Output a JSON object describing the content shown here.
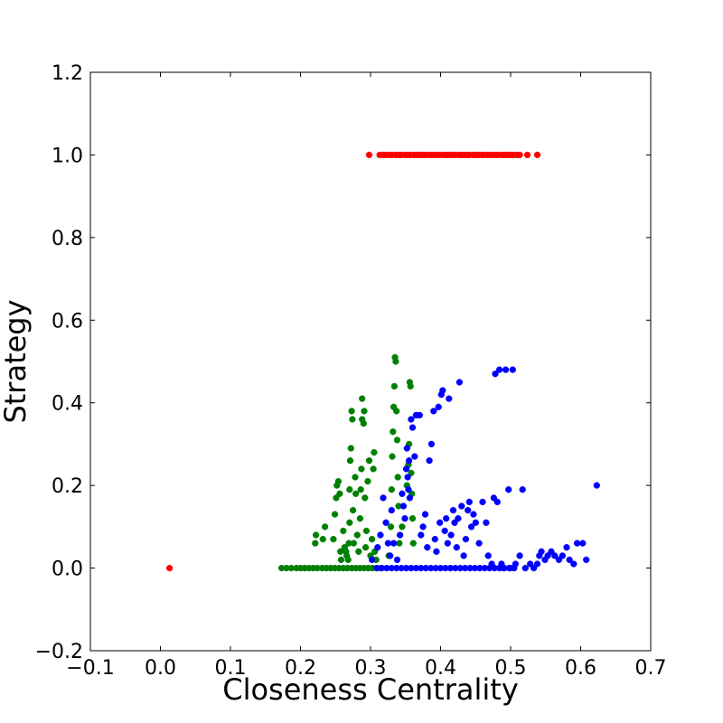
{
  "chart_data": {
    "type": "scatter",
    "title": "",
    "xlabel": "Closeness Centrality",
    "ylabel": "Strategy",
    "xlim": [
      -0.1,
      0.7
    ],
    "ylim": [
      -0.2,
      1.2
    ],
    "xticks": [
      -0.1,
      0.0,
      0.1,
      0.2,
      0.3,
      0.4,
      0.5,
      0.6,
      0.7
    ],
    "xtick_labels": [
      "−0.1",
      "0.0",
      "0.1",
      "0.2",
      "0.3",
      "0.4",
      "0.5",
      "0.6",
      "0.7"
    ],
    "yticks": [
      -0.2,
      0.0,
      0.2,
      0.4,
      0.6,
      0.8,
      1.0,
      1.2
    ],
    "ytick_labels": [
      "−0.2",
      "0.0",
      "0.2",
      "0.4",
      "0.6",
      "0.8",
      "1.0",
      "1.2"
    ],
    "grid": false,
    "series": [
      {
        "color": "#ff0000",
        "points": [
          [
            0.013,
            0.0
          ],
          [
            0.298,
            1.0
          ],
          [
            0.313,
            1.0
          ],
          [
            0.318,
            1.0
          ],
          [
            0.322,
            1.0
          ],
          [
            0.327,
            1.0
          ],
          [
            0.331,
            1.0
          ],
          [
            0.336,
            1.0
          ],
          [
            0.34,
            1.0
          ],
          [
            0.344,
            1.0
          ],
          [
            0.349,
            1.0
          ],
          [
            0.353,
            1.0
          ],
          [
            0.357,
            1.0
          ],
          [
            0.362,
            1.0
          ],
          [
            0.366,
            1.0
          ],
          [
            0.37,
            1.0
          ],
          [
            0.374,
            1.0
          ],
          [
            0.378,
            1.0
          ],
          [
            0.383,
            1.0
          ],
          [
            0.387,
            1.0
          ],
          [
            0.391,
            1.0
          ],
          [
            0.395,
            1.0
          ],
          [
            0.399,
            1.0
          ],
          [
            0.404,
            1.0
          ],
          [
            0.408,
            1.0
          ],
          [
            0.412,
            1.0
          ],
          [
            0.416,
            1.0
          ],
          [
            0.42,
            1.0
          ],
          [
            0.425,
            1.0
          ],
          [
            0.429,
            1.0
          ],
          [
            0.433,
            1.0
          ],
          [
            0.437,
            1.0
          ],
          [
            0.441,
            1.0
          ],
          [
            0.446,
            1.0
          ],
          [
            0.45,
            1.0
          ],
          [
            0.454,
            1.0
          ],
          [
            0.458,
            1.0
          ],
          [
            0.462,
            1.0
          ],
          [
            0.467,
            1.0
          ],
          [
            0.471,
            1.0
          ],
          [
            0.475,
            1.0
          ],
          [
            0.479,
            1.0
          ],
          [
            0.483,
            1.0
          ],
          [
            0.488,
            1.0
          ],
          [
            0.492,
            1.0
          ],
          [
            0.496,
            1.0
          ],
          [
            0.5,
            1.0
          ],
          [
            0.504,
            1.0
          ],
          [
            0.509,
            1.0
          ],
          [
            0.513,
            1.0
          ],
          [
            0.524,
            1.0
          ],
          [
            0.538,
            1.0
          ]
        ]
      },
      {
        "color": "#008000",
        "points": [
          [
            0.173,
            0.0
          ],
          [
            0.18,
            0.0
          ],
          [
            0.187,
            0.0
          ],
          [
            0.194,
            0.0
          ],
          [
            0.2,
            0.0
          ],
          [
            0.206,
            0.0
          ],
          [
            0.212,
            0.0
          ],
          [
            0.218,
            0.0
          ],
          [
            0.224,
            0.0
          ],
          [
            0.231,
            0.0
          ],
          [
            0.237,
            0.0
          ],
          [
            0.243,
            0.0
          ],
          [
            0.249,
            0.0
          ],
          [
            0.255,
            0.0
          ],
          [
            0.261,
            0.0
          ],
          [
            0.267,
            0.0
          ],
          [
            0.273,
            0.0
          ],
          [
            0.279,
            0.0
          ],
          [
            0.285,
            0.0
          ],
          [
            0.291,
            0.0
          ],
          [
            0.297,
            0.0
          ],
          [
            0.303,
            0.0
          ],
          [
            0.309,
            0.0
          ],
          [
            0.315,
            0.0
          ],
          [
            0.222,
            0.08
          ],
          [
            0.221,
            0.06
          ],
          [
            0.232,
            0.07
          ],
          [
            0.235,
            0.1
          ],
          [
            0.247,
            0.07
          ],
          [
            0.249,
            0.13
          ],
          [
            0.251,
            0.17
          ],
          [
            0.252,
            0.2
          ],
          [
            0.254,
            0.21
          ],
          [
            0.256,
            0.18
          ],
          [
            0.257,
            0.04
          ],
          [
            0.258,
            0.02
          ],
          [
            0.261,
            0.09
          ],
          [
            0.263,
            0.05
          ],
          [
            0.265,
            0.04
          ],
          [
            0.266,
            0.03
          ],
          [
            0.268,
            0.02
          ],
          [
            0.269,
            0.06
          ],
          [
            0.27,
            0.11
          ],
          [
            0.27,
            0.19
          ],
          [
            0.271,
            0.26
          ],
          [
            0.272,
            0.29
          ],
          [
            0.273,
            0.38
          ],
          [
            0.274,
            0.36
          ],
          [
            0.275,
            0.14
          ],
          [
            0.276,
            0.06
          ],
          [
            0.278,
            0.22
          ],
          [
            0.279,
            0.18
          ],
          [
            0.281,
            0.08
          ],
          [
            0.283,
            0.04
          ],
          [
            0.285,
            0.12
          ],
          [
            0.286,
            0.19
          ],
          [
            0.287,
            0.24
          ],
          [
            0.288,
            0.36
          ],
          [
            0.288,
            0.41
          ],
          [
            0.29,
            0.35
          ],
          [
            0.291,
            0.38
          ],
          [
            0.292,
            0.17
          ],
          [
            0.293,
            0.05
          ],
          [
            0.294,
            0.09
          ],
          [
            0.296,
            0.21
          ],
          [
            0.298,
            0.26
          ],
          [
            0.3,
            0.03
          ],
          [
            0.302,
            0.07
          ],
          [
            0.304,
            0.24
          ],
          [
            0.305,
            0.28
          ],
          [
            0.306,
            0.04
          ],
          [
            0.308,
            0.02
          ],
          [
            0.326,
            0.03
          ],
          [
            0.329,
            0.1
          ],
          [
            0.33,
            0.19
          ],
          [
            0.331,
            0.27
          ],
          [
            0.332,
            0.33
          ],
          [
            0.333,
            0.39
          ],
          [
            0.334,
            0.44
          ],
          [
            0.335,
            0.51
          ],
          [
            0.336,
            0.5
          ],
          [
            0.337,
            0.38
          ],
          [
            0.338,
            0.31
          ],
          [
            0.339,
            0.22
          ],
          [
            0.34,
            0.15
          ],
          [
            0.341,
            0.06
          ],
          [
            0.345,
            0.1
          ],
          [
            0.352,
            0.2
          ],
          [
            0.354,
            0.25
          ],
          [
            0.355,
            0.3
          ],
          [
            0.356,
            0.45
          ],
          [
            0.357,
            0.44
          ],
          [
            0.358,
            0.23
          ],
          [
            0.359,
            0.18
          ],
          [
            0.36,
            0.12
          ],
          [
            0.361,
            0.06
          ]
        ]
      },
      {
        "color": "#0000ff",
        "points": [
          [
            0.302,
            0.02
          ],
          [
            0.309,
            0.0
          ],
          [
            0.316,
            0.0
          ],
          [
            0.323,
            0.0
          ],
          [
            0.33,
            0.0
          ],
          [
            0.337,
            0.0
          ],
          [
            0.344,
            0.0
          ],
          [
            0.351,
            0.0
          ],
          [
            0.358,
            0.0
          ],
          [
            0.365,
            0.0
          ],
          [
            0.372,
            0.0
          ],
          [
            0.379,
            0.0
          ],
          [
            0.386,
            0.0
          ],
          [
            0.393,
            0.0
          ],
          [
            0.4,
            0.0
          ],
          [
            0.407,
            0.0
          ],
          [
            0.414,
            0.0
          ],
          [
            0.421,
            0.0
          ],
          [
            0.428,
            0.0
          ],
          [
            0.435,
            0.0
          ],
          [
            0.442,
            0.0
          ],
          [
            0.449,
            0.0
          ],
          [
            0.456,
            0.0
          ],
          [
            0.463,
            0.0
          ],
          [
            0.47,
            0.0
          ],
          [
            0.477,
            0.0
          ],
          [
            0.484,
            0.0
          ],
          [
            0.491,
            0.0
          ],
          [
            0.498,
            0.0
          ],
          [
            0.505,
            0.0
          ],
          [
            0.31,
            0.05
          ],
          [
            0.314,
            0.08
          ],
          [
            0.318,
            0.17
          ],
          [
            0.322,
            0.11
          ],
          [
            0.325,
            0.06
          ],
          [
            0.328,
            0.03
          ],
          [
            0.33,
            0.14
          ],
          [
            0.333,
            0.06
          ],
          [
            0.338,
            0.02
          ],
          [
            0.342,
            0.08
          ],
          [
            0.345,
            0.18
          ],
          [
            0.347,
            0.15
          ],
          [
            0.349,
            0.12
          ],
          [
            0.351,
            0.24
          ],
          [
            0.352,
            0.29
          ],
          [
            0.353,
            0.22
          ],
          [
            0.354,
            0.19
          ],
          [
            0.355,
            0.26
          ],
          [
            0.356,
            0.17
          ],
          [
            0.358,
            0.36
          ],
          [
            0.36,
            0.34
          ],
          [
            0.363,
            0.27
          ],
          [
            0.365,
            0.37
          ],
          [
            0.37,
            0.37
          ],
          [
            0.372,
            0.08
          ],
          [
            0.375,
            0.1
          ],
          [
            0.378,
            0.13
          ],
          [
            0.381,
            0.05
          ],
          [
            0.384,
            0.26
          ],
          [
            0.387,
            0.3
          ],
          [
            0.39,
            0.38
          ],
          [
            0.392,
            0.07
          ],
          [
            0.394,
            0.04
          ],
          [
            0.397,
            0.39
          ],
          [
            0.399,
            0.11
          ],
          [
            0.401,
            0.42
          ],
          [
            0.403,
            0.43
          ],
          [
            0.406,
            0.09
          ],
          [
            0.408,
            0.12
          ],
          [
            0.41,
            0.06
          ],
          [
            0.412,
            0.41
          ],
          [
            0.415,
            0.08
          ],
          [
            0.418,
            0.14
          ],
          [
            0.42,
            0.11
          ],
          [
            0.423,
            0.05
          ],
          [
            0.425,
            0.12
          ],
          [
            0.427,
            0.45
          ],
          [
            0.43,
            0.15
          ],
          [
            0.433,
            0.03
          ],
          [
            0.436,
            0.07
          ],
          [
            0.439,
            0.14
          ],
          [
            0.441,
            0.16
          ],
          [
            0.444,
            0.1
          ],
          [
            0.447,
            0.13
          ],
          [
            0.45,
            0.11
          ],
          [
            0.455,
            0.06
          ],
          [
            0.46,
            0.16
          ],
          [
            0.465,
            0.11
          ],
          [
            0.468,
            0.03
          ],
          [
            0.473,
            0.01
          ],
          [
            0.476,
            0.17
          ],
          [
            0.478,
            0.47
          ],
          [
            0.481,
            0.16
          ],
          [
            0.484,
            0.48
          ],
          [
            0.487,
            0.01
          ],
          [
            0.49,
            0.0
          ],
          [
            0.493,
            0.48
          ],
          [
            0.497,
            0.19
          ],
          [
            0.5,
            0.0
          ],
          [
            0.503,
            0.48
          ],
          [
            0.507,
            0.01
          ],
          [
            0.513,
            0.03
          ],
          [
            0.517,
            0.19
          ],
          [
            0.521,
            0.0
          ],
          [
            0.528,
            0.01
          ],
          [
            0.533,
            0.0
          ],
          [
            0.538,
            0.01
          ],
          [
            0.541,
            0.03
          ],
          [
            0.544,
            0.04
          ],
          [
            0.549,
            0.02
          ],
          [
            0.553,
            0.03
          ],
          [
            0.558,
            0.04
          ],
          [
            0.563,
            0.03
          ],
          [
            0.569,
            0.02
          ],
          [
            0.574,
            0.03
          ],
          [
            0.58,
            0.05
          ],
          [
            0.584,
            0.02
          ],
          [
            0.59,
            0.01
          ],
          [
            0.595,
            0.06
          ],
          [
            0.603,
            0.06
          ],
          [
            0.608,
            0.02
          ],
          [
            0.623,
            0.2
          ]
        ]
      }
    ]
  }
}
